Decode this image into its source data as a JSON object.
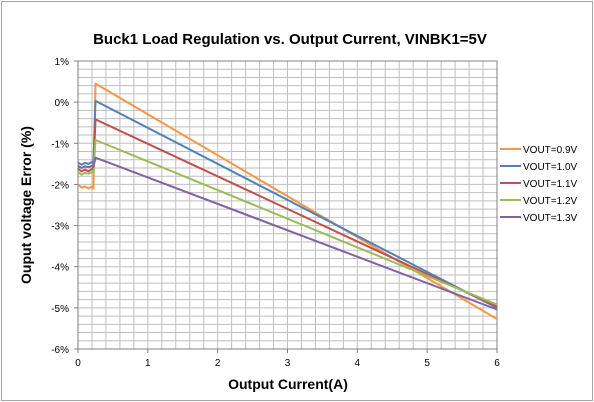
{
  "chart_data": {
    "type": "line",
    "title": "Buck1 Load Regulation vs. Output Current, VINBK1=5V",
    "xlabel": "Output Current(A)",
    "ylabel": "Ouput voltage Error (%)",
    "xlim": [
      0,
      6
    ],
    "ylim": [
      -6,
      1
    ],
    "x_ticks": [
      0,
      1,
      2,
      3,
      4,
      5,
      6
    ],
    "y_ticks": [
      1,
      0,
      -1,
      -2,
      -3,
      -4,
      -5,
      -6
    ],
    "x_tick_labels": [
      "0",
      "1",
      "2",
      "3",
      "4",
      "5",
      "6"
    ],
    "y_tick_labels": [
      "1%",
      "0%",
      "-1%",
      "-2%",
      "-3%",
      "-4%",
      "-5%",
      "-6%"
    ],
    "grid": true,
    "legend_position": "right",
    "series": [
      {
        "name": "VOUT=0.9V",
        "color": "#f79646",
        "points": [
          [
            0,
            -2.0
          ],
          [
            0.05,
            -2.08
          ],
          [
            0.1,
            -2.05
          ],
          [
            0.15,
            -2.1
          ],
          [
            0.2,
            -2.05
          ],
          [
            0.22,
            -2.1
          ],
          [
            0.25,
            0.45
          ],
          [
            6,
            -5.27
          ]
        ]
      },
      {
        "name": "VOUT=1.0V",
        "color": "#4f81bd",
        "points": [
          [
            0,
            -1.47
          ],
          [
            0.05,
            -1.52
          ],
          [
            0.1,
            -1.48
          ],
          [
            0.15,
            -1.5
          ],
          [
            0.2,
            -1.45
          ],
          [
            0.22,
            -1.5
          ],
          [
            0.25,
            0.03
          ],
          [
            6,
            -5.0
          ]
        ]
      },
      {
        "name": "VOUT=1.1V",
        "color": "#c0504d",
        "points": [
          [
            0,
            -1.62
          ],
          [
            0.05,
            -1.68
          ],
          [
            0.1,
            -1.64
          ],
          [
            0.15,
            -1.68
          ],
          [
            0.2,
            -1.62
          ],
          [
            0.22,
            -1.65
          ],
          [
            0.25,
            -0.42
          ],
          [
            6,
            -4.97
          ]
        ]
      },
      {
        "name": "VOUT=1.2V",
        "color": "#9bbb59",
        "points": [
          [
            0,
            -1.7
          ],
          [
            0.05,
            -1.76
          ],
          [
            0.1,
            -1.72
          ],
          [
            0.15,
            -1.74
          ],
          [
            0.2,
            -1.7
          ],
          [
            0.22,
            -1.72
          ],
          [
            0.25,
            -0.92
          ],
          [
            6,
            -4.92
          ]
        ]
      },
      {
        "name": "VOUT=1.3V",
        "color": "#8064a2",
        "points": [
          [
            0,
            -1.55
          ],
          [
            0.05,
            -1.6
          ],
          [
            0.1,
            -1.56
          ],
          [
            0.15,
            -1.58
          ],
          [
            0.2,
            -1.55
          ],
          [
            0.22,
            -1.58
          ],
          [
            0.25,
            -1.35
          ],
          [
            6,
            -5.04
          ]
        ]
      }
    ]
  }
}
